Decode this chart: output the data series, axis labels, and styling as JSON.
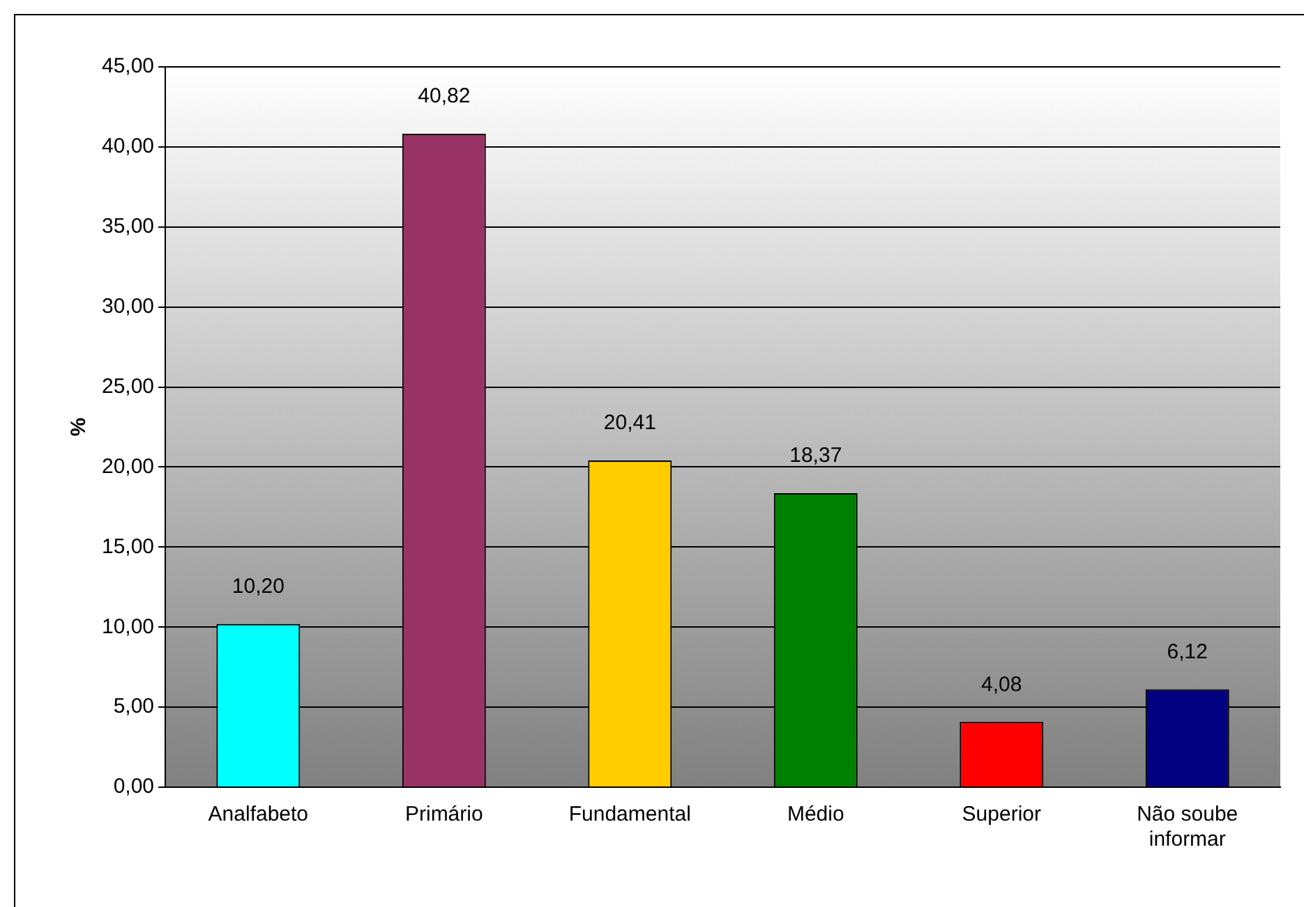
{
  "chart_data": {
    "type": "bar",
    "ylabel": "%",
    "categories": [
      "Analfabeto",
      "Primário",
      "Fundamental",
      "Médio",
      "Superior",
      "Não soube informar"
    ],
    "values": [
      10.2,
      40.82,
      20.41,
      18.37,
      4.08,
      6.12
    ],
    "colors": [
      "#00ffff",
      "#993366",
      "#ffcc00",
      "#008000",
      "#ff0000",
      "#000080"
    ],
    "value_labels": [
      "10,20",
      "40,82",
      "20,41",
      "18,37",
      "4,08",
      "6,12"
    ],
    "ylim": [
      0,
      45
    ],
    "yticks": [
      {
        "value": 0,
        "label": "0,00"
      },
      {
        "value": 5,
        "label": "5,00"
      },
      {
        "value": 10,
        "label": "10,00"
      },
      {
        "value": 15,
        "label": "15,00"
      },
      {
        "value": 20,
        "label": "20,00"
      },
      {
        "value": 25,
        "label": "25,00"
      },
      {
        "value": 30,
        "label": "30,00"
      },
      {
        "value": 35,
        "label": "35,00"
      },
      {
        "value": 40,
        "label": "40,00"
      },
      {
        "value": 45,
        "label": "45,00"
      }
    ],
    "grid": "y",
    "legend": false
  }
}
